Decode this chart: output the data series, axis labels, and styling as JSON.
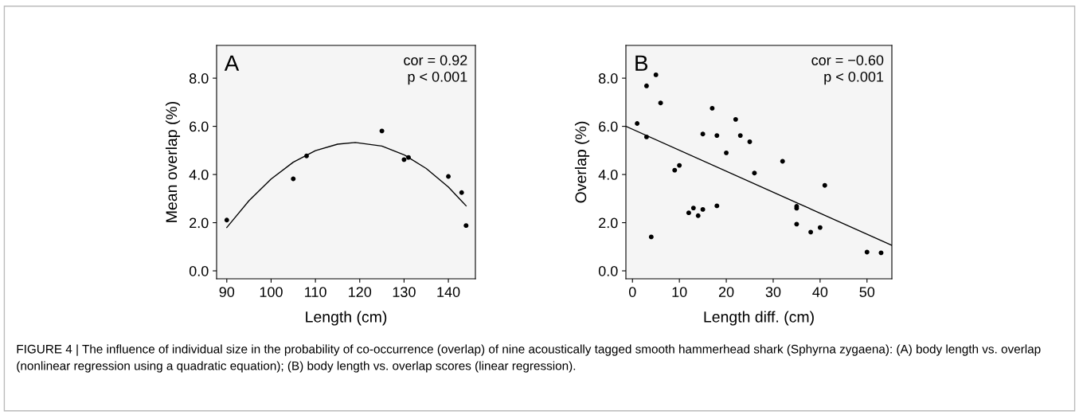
{
  "chart_data": [
    {
      "type": "scatter",
      "xlabel": "Length (cm)",
      "ylabel": "Mean overlap (%)",
      "xlim": [
        87.7,
        146.1
      ],
      "ylim": [
        -0.33,
        9.36
      ],
      "xticks": [
        90,
        100,
        110,
        120,
        130,
        140
      ],
      "yticks": [
        {
          "value": 0,
          "label": "0.0"
        },
        {
          "value": 2,
          "label": "2.0"
        },
        {
          "value": 4,
          "label": "4.0"
        },
        {
          "value": 6,
          "label": "6.0"
        },
        {
          "value": 8,
          "label": "8.0"
        }
      ],
      "grid": false,
      "annotations": [
        "A",
        "cor = 0.92\np < 0.001"
      ],
      "series": [
        {
          "marker": "circle",
          "color": "#000000",
          "x": [
            90,
            105,
            108,
            125,
            130,
            131,
            140,
            143,
            144
          ],
          "values": [
            2.11,
            3.82,
            4.77,
            5.81,
            4.62,
            4.71,
            3.92,
            3.25,
            1.88
          ]
        },
        {
          "type": "line",
          "color": "#000000",
          "x": [
            90,
            95,
            100,
            105,
            110,
            115,
            119,
            125,
            130,
            135,
            140,
            144
          ],
          "values": [
            1.8,
            2.91,
            3.81,
            4.51,
            4.99,
            5.26,
            5.33,
            5.18,
            4.82,
            4.25,
            3.48,
            2.7
          ]
        }
      ]
    },
    {
      "type": "scatter",
      "xlabel": "Length diff. (cm)",
      "ylabel": "Overlap (%)",
      "xlim": [
        -1.4,
        55.3
      ],
      "ylim": [
        -0.33,
        9.36
      ],
      "xticks": [
        0,
        10,
        20,
        30,
        40,
        50
      ],
      "yticks": [
        {
          "value": 0,
          "label": "0.0"
        },
        {
          "value": 2,
          "label": "2.0"
        },
        {
          "value": 4,
          "label": "4.0"
        },
        {
          "value": 6,
          "label": "6.0"
        },
        {
          "value": 8,
          "label": "8.0"
        }
      ],
      "grid": false,
      "annotations": [
        "B",
        "cor = −0.60\np < 0.001",
        "FIGURE 4 | The influence of individual size in the probability of co-occurrence (overlap) of nine acoustically tagged smooth hammerhead shark (Sphyrna zygaena): (A) body length vs. overlap (nonlinear regression using a quadratic equation); (B) body length vs. overlap scores (linear regression)."
      ],
      "series": [
        {
          "marker": "circle",
          "color": "#000000",
          "x": [
            1,
            3,
            3,
            4,
            5,
            6,
            9,
            10,
            12,
            13,
            14,
            15,
            15,
            17,
            18,
            18,
            20,
            22,
            23,
            25,
            26,
            32,
            35,
            35,
            35,
            38,
            40,
            41,
            50,
            53
          ],
          "values": [
            6.12,
            7.68,
            5.56,
            1.41,
            8.14,
            6.97,
            4.18,
            4.38,
            2.41,
            2.61,
            2.29,
            5.68,
            2.55,
            6.75,
            5.62,
            2.7,
            4.9,
            6.29,
            5.62,
            5.36,
            4.06,
            4.55,
            2.68,
            2.6,
            1.94,
            1.61,
            1.8,
            3.55,
            0.78,
            0.75
          ]
        },
        {
          "type": "line",
          "color": "#000000",
          "x": [
            -1.4,
            55.3
          ],
          "values": [
            6.0,
            1.06
          ]
        }
      ]
    }
  ]
}
